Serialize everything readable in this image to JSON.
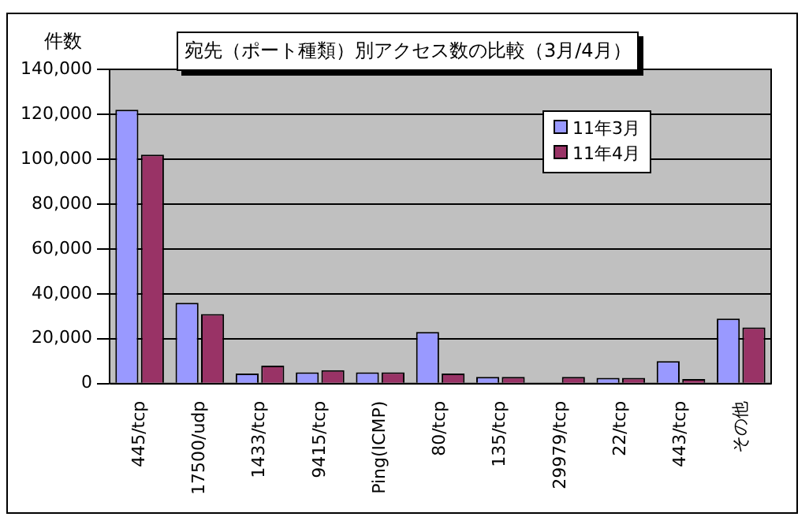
{
  "chart_data": {
    "type": "bar",
    "title": "宛先（ポート種類）別アクセス数の比較（3月/4月）",
    "ylabel": "件数",
    "categories": [
      "445/tcp",
      "17500/udp",
      "1433/tcp",
      "9415/tcp",
      "Ping(ICMP)",
      "80/tcp",
      "135/tcp",
      "29979/tcp",
      "22/tcp",
      "443/tcp",
      "その他"
    ],
    "series": [
      {
        "name": "11年3月",
        "color": "#9999ff",
        "values": [
          122000,
          36000,
          4500,
          5000,
          5000,
          23000,
          3000,
          0,
          2500,
          10000,
          29000
        ]
      },
      {
        "name": "11年4月",
        "color": "#993366",
        "values": [
          102000,
          31000,
          8000,
          6000,
          5000,
          4500,
          3000,
          3000,
          2500,
          2000,
          25000
        ]
      }
    ],
    "ylim": [
      0,
      140000
    ],
    "yticks": [
      0,
      {
        "value": 20000,
        "label": "20,000"
      },
      {
        "value": 40000,
        "label": "40,000"
      },
      {
        "value": 60000,
        "label": "60,000"
      },
      {
        "value": 80000,
        "label": "80,000"
      },
      {
        "value": 100000,
        "label": "100,000"
      },
      {
        "value": 120000,
        "label": "120,000"
      },
      {
        "value": 140000,
        "label": "140,000"
      }
    ],
    "grid": "y",
    "legend": "top right"
  }
}
